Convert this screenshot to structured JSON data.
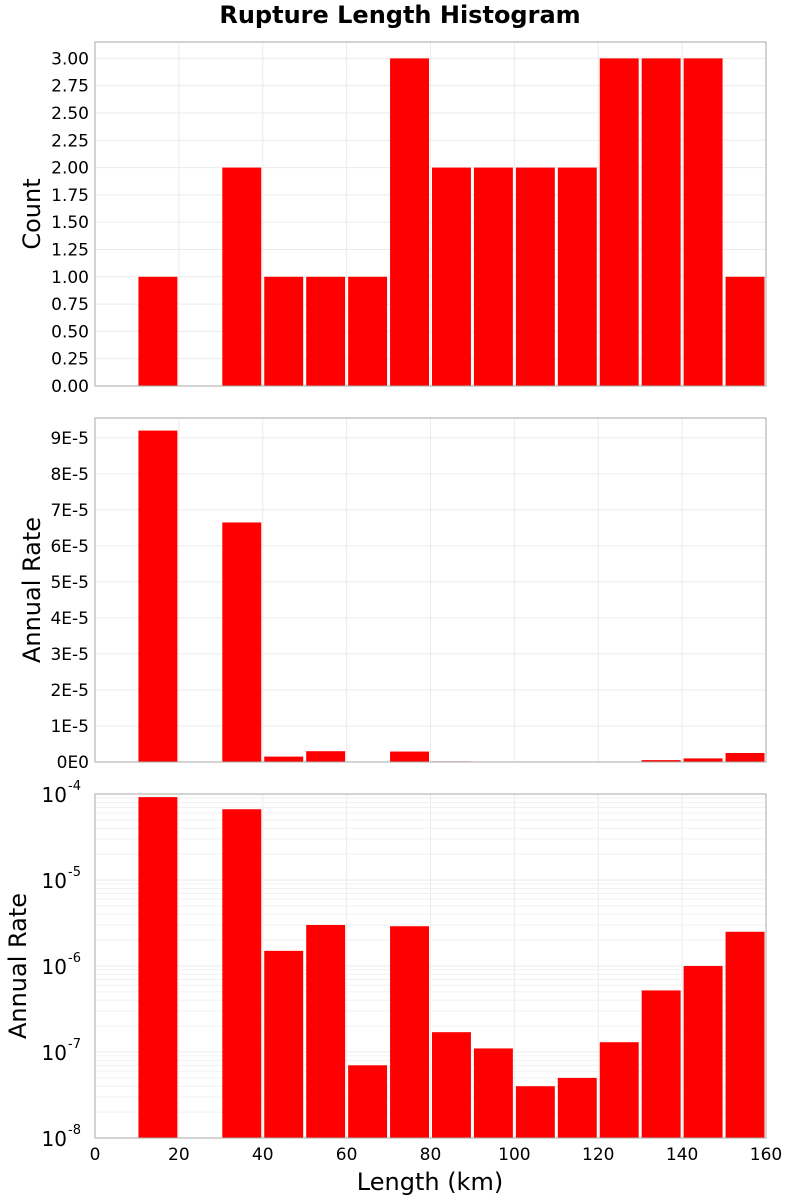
{
  "chart_data": {
    "title": "Rupture Length Histogram",
    "xlabel": "Length (km)",
    "xlim": [
      0,
      160
    ],
    "xticks": [
      "0",
      "20",
      "40",
      "60",
      "80",
      "100",
      "120",
      "140",
      "160"
    ],
    "bin_width": 10,
    "bar_color": "#ff0000",
    "bin_centers": [
      15,
      25,
      35,
      45,
      55,
      65,
      75,
      85,
      95,
      105,
      115,
      125,
      135,
      145,
      155
    ],
    "panels": [
      {
        "type": "bar",
        "scale": "linear",
        "ylabel": "Count",
        "ylim": [
          0,
          3.15
        ],
        "yticks": [
          "0.00",
          "0.25",
          "0.50",
          "0.75",
          "1.00",
          "1.25",
          "1.50",
          "1.75",
          "2.00",
          "2.25",
          "2.50",
          "2.75",
          "3.00"
        ],
        "values": [
          1,
          0,
          2,
          1,
          1,
          1,
          3,
          2,
          2,
          2,
          2,
          3,
          3,
          3,
          1
        ]
      },
      {
        "type": "bar",
        "scale": "linear",
        "ylabel": "Annual Rate",
        "ylim": [
          0,
          9.55e-05
        ],
        "yticks": [
          "0E0",
          "1E-5",
          "2E-5",
          "3E-5",
          "4E-5",
          "5E-5",
          "6E-5",
          "7E-5",
          "8E-5",
          "9E-5"
        ],
        "values": [
          9.2e-05,
          0,
          6.65e-05,
          1.5e-06,
          3e-06,
          7e-08,
          2.9e-06,
          1.7e-07,
          1.1e-07,
          4e-08,
          5e-08,
          1.3e-07,
          5.2e-07,
          1e-06,
          2.5e-06
        ]
      },
      {
        "type": "bar",
        "scale": "log",
        "ylabel": "Annual Rate",
        "ylim": [
          1e-08,
          0.0001
        ],
        "yticks": [
          {
            "base": "10",
            "exp": "-4"
          },
          {
            "base": "10",
            "exp": "-5"
          },
          {
            "base": "10",
            "exp": "-6"
          },
          {
            "base": "10",
            "exp": "-7"
          },
          {
            "base": "10",
            "exp": "-8"
          }
        ],
        "values": [
          9.2e-05,
          0,
          6.65e-05,
          1.5e-06,
          3e-06,
          7e-08,
          2.9e-06,
          1.7e-07,
          1.1e-07,
          4e-08,
          5e-08,
          1.3e-07,
          5.2e-07,
          1e-06,
          2.5e-06
        ]
      }
    ]
  }
}
